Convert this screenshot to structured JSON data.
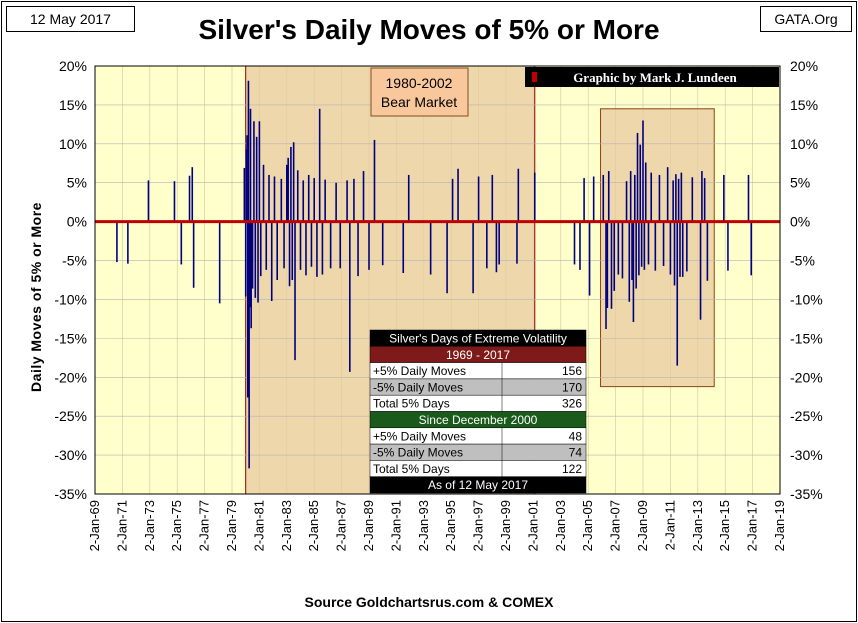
{
  "header": {
    "date": "12 May 2017",
    "site": "GATA.Org"
  },
  "chart_data": {
    "type": "bar",
    "title": "Silver's Daily Moves of 5% or More",
    "ylabel": "Daily Moves of 5% or More",
    "xlabel": "",
    "source": "Source Goldchartsrus.com & COMEX",
    "credit": "Graphic by Mark J. Lundeen",
    "ylim": [
      -35,
      20
    ],
    "y_ticks": [
      20,
      15,
      10,
      5,
      0,
      -5,
      -10,
      -15,
      -20,
      -25,
      -30,
      -35
    ],
    "y_tick_labels": [
      "20%",
      "15%",
      "10%",
      "5%",
      "0%",
      "-5%",
      "-10%",
      "-15%",
      "-20%",
      "-25%",
      "-30%",
      "-35%"
    ],
    "xlim": [
      1969.0,
      2019.0
    ],
    "x_tick_labels": [
      "2-Jan-69",
      "2-Jan-71",
      "2-Jan-73",
      "2-Jan-75",
      "2-Jan-77",
      "2-Jan-79",
      "2-Jan-81",
      "2-Jan-83",
      "2-Jan-85",
      "2-Jan-87",
      "2-Jan-89",
      "2-Jan-91",
      "2-Jan-93",
      "2-Jan-95",
      "2-Jan-97",
      "2-Jan-99",
      "2-Jan-01",
      "2-Jan-03",
      "2-Jan-05",
      "2-Jan-07",
      "2-Jan-09",
      "2-Jan-11",
      "2-Jan-13",
      "2-Jan-15",
      "2-Jan-17",
      "2-Jan-19"
    ],
    "annotations": {
      "bear_market": {
        "label_line1": "1980-2002",
        "label_line2": "Bear Market",
        "x_start": 1980.0,
        "x_end": 2001.1
      },
      "recent_box": {
        "x_start": 2005.9,
        "x_end": 2014.2,
        "y_top": 14.5,
        "y_bottom": -21.2
      }
    },
    "series": [
      {
        "name": "Daily Moves",
        "points": [
          [
            1970.6,
            -5.2
          ],
          [
            1971.4,
            -5.4
          ],
          [
            1972.9,
            5.3
          ],
          [
            1974.8,
            5.2
          ],
          [
            1975.3,
            -5.5
          ],
          [
            1975.9,
            5.9
          ],
          [
            1976.1,
            7.0
          ],
          [
            1976.2,
            -8.5
          ],
          [
            1978.1,
            -10.5
          ],
          [
            1979.9,
            6.9
          ],
          [
            1980.0,
            -9.6
          ],
          [
            1980.05,
            9.3
          ],
          [
            1980.1,
            11.1
          ],
          [
            1980.15,
            -22.6
          ],
          [
            1980.2,
            18.1
          ],
          [
            1980.25,
            -31.7
          ],
          [
            1980.3,
            -11.0
          ],
          [
            1980.35,
            14.5
          ],
          [
            1980.4,
            -13.7
          ],
          [
            1980.5,
            -8.6
          ],
          [
            1980.6,
            12.9
          ],
          [
            1980.7,
            -9.8
          ],
          [
            1980.8,
            10.9
          ],
          [
            1980.9,
            -10.4
          ],
          [
            1981.0,
            12.9
          ],
          [
            1981.1,
            -7.0
          ],
          [
            1981.3,
            7.3
          ],
          [
            1981.5,
            -6.2
          ],
          [
            1981.7,
            6.0
          ],
          [
            1981.9,
            -10.2
          ],
          [
            1982.1,
            5.8
          ],
          [
            1982.3,
            -7.5
          ],
          [
            1982.6,
            5.5
          ],
          [
            1982.8,
            -6.0
          ],
          [
            1983.0,
            7.3
          ],
          [
            1983.1,
            8.2
          ],
          [
            1983.2,
            -8.3
          ],
          [
            1983.3,
            9.6
          ],
          [
            1983.4,
            -7.5
          ],
          [
            1983.5,
            10.2
          ],
          [
            1983.6,
            -17.8
          ],
          [
            1983.8,
            6.6
          ],
          [
            1984.0,
            -6.2
          ],
          [
            1984.2,
            5.3
          ],
          [
            1984.4,
            -6.9
          ],
          [
            1984.6,
            6.0
          ],
          [
            1984.8,
            -5.8
          ],
          [
            1985.0,
            5.6
          ],
          [
            1985.2,
            -7.1
          ],
          [
            1985.4,
            14.5
          ],
          [
            1985.6,
            -6.8
          ],
          [
            1985.8,
            5.4
          ],
          [
            1986.2,
            -6.0
          ],
          [
            1986.6,
            5.0
          ],
          [
            1986.9,
            -6.0
          ],
          [
            1987.4,
            5.3
          ],
          [
            1987.6,
            -19.3
          ],
          [
            1987.9,
            5.5
          ],
          [
            1988.2,
            -7.0
          ],
          [
            1988.6,
            6.5
          ],
          [
            1989.0,
            -6.2
          ],
          [
            1989.4,
            10.5
          ],
          [
            1990.0,
            -5.6
          ],
          [
            1991.5,
            -6.6
          ],
          [
            1991.9,
            6.0
          ],
          [
            1993.5,
            -6.8
          ],
          [
            1994.7,
            -9.2
          ],
          [
            1995.1,
            5.5
          ],
          [
            1995.5,
            6.8
          ],
          [
            1996.6,
            -9.2
          ],
          [
            1997.0,
            5.8
          ],
          [
            1997.6,
            -6.0
          ],
          [
            1998.0,
            6.0
          ],
          [
            1998.3,
            -6.5
          ],
          [
            1998.5,
            -5.5
          ],
          [
            1999.8,
            -5.4
          ],
          [
            1999.9,
            6.8
          ],
          [
            2001.1,
            6.3
          ],
          [
            2004.0,
            -5.5
          ],
          [
            2004.4,
            -6.2
          ],
          [
            2004.7,
            5.6
          ],
          [
            2005.1,
            -9.5
          ],
          [
            2005.4,
            5.8
          ],
          [
            2006.1,
            6.0
          ],
          [
            2006.3,
            -13.8
          ],
          [
            2006.4,
            -11.1
          ],
          [
            2006.5,
            6.5
          ],
          [
            2006.7,
            -11.2
          ],
          [
            2006.9,
            -8.9
          ],
          [
            2007.2,
            -6.8
          ],
          [
            2007.5,
            -7.3
          ],
          [
            2007.8,
            5.2
          ],
          [
            2008.0,
            -10.3
          ],
          [
            2008.1,
            6.5
          ],
          [
            2008.2,
            -7.5
          ],
          [
            2008.3,
            -12.9
          ],
          [
            2008.4,
            6.0
          ],
          [
            2008.5,
            -8.6
          ],
          [
            2008.6,
            11.4
          ],
          [
            2008.7,
            -6.9
          ],
          [
            2008.8,
            9.9
          ],
          [
            2008.9,
            -5.8
          ],
          [
            2009.0,
            13.0
          ],
          [
            2009.1,
            -6.2
          ],
          [
            2009.2,
            7.6
          ],
          [
            2009.4,
            -5.5
          ],
          [
            2009.6,
            6.3
          ],
          [
            2009.9,
            -6.3
          ],
          [
            2010.2,
            6.0
          ],
          [
            2010.5,
            -5.7
          ],
          [
            2010.8,
            7.0
          ],
          [
            2011.0,
            -6.8
          ],
          [
            2011.2,
            5.3
          ],
          [
            2011.3,
            -8.2
          ],
          [
            2011.4,
            6.1
          ],
          [
            2011.5,
            -18.5
          ],
          [
            2011.6,
            5.5
          ],
          [
            2011.7,
            -7.1
          ],
          [
            2011.8,
            6.3
          ],
          [
            2011.9,
            -7.1
          ],
          [
            2012.2,
            -6.4
          ],
          [
            2012.6,
            5.7
          ],
          [
            2013.2,
            -12.6
          ],
          [
            2013.3,
            6.5
          ],
          [
            2013.5,
            5.6
          ],
          [
            2013.7,
            -7.6
          ],
          [
            2014.9,
            6.0
          ],
          [
            2015.2,
            -6.3
          ],
          [
            2016.7,
            6.0
          ],
          [
            2016.9,
            -6.9
          ]
        ]
      }
    ],
    "stats_table": {
      "title": "Silver's Days of Extreme Volatility",
      "period1": "1969 - 2017",
      "rows1": [
        [
          "+5% Daily Moves",
          "156"
        ],
        [
          "-5% Daily Moves",
          "170"
        ],
        [
          "Total 5% Days",
          "326"
        ]
      ],
      "period2": "Since December 2000",
      "rows2": [
        [
          "+5% Daily Moves",
          "48"
        ],
        [
          "-5% Daily Moves",
          "74"
        ],
        [
          "Total 5% Days",
          "122"
        ]
      ],
      "footer": "As of 12 May 2017"
    },
    "colors": {
      "plot_bg": "#FFFFCC",
      "shade_fill": "#E8C9A0",
      "bar": "#00007F",
      "zero_line": "#C00000",
      "label_box": "#F8C89C",
      "credit_bg": "#000000",
      "table_dark": "#7F1A1A",
      "table_green": "#1A5A1A",
      "table_gray": "#BFBFBF"
    }
  }
}
